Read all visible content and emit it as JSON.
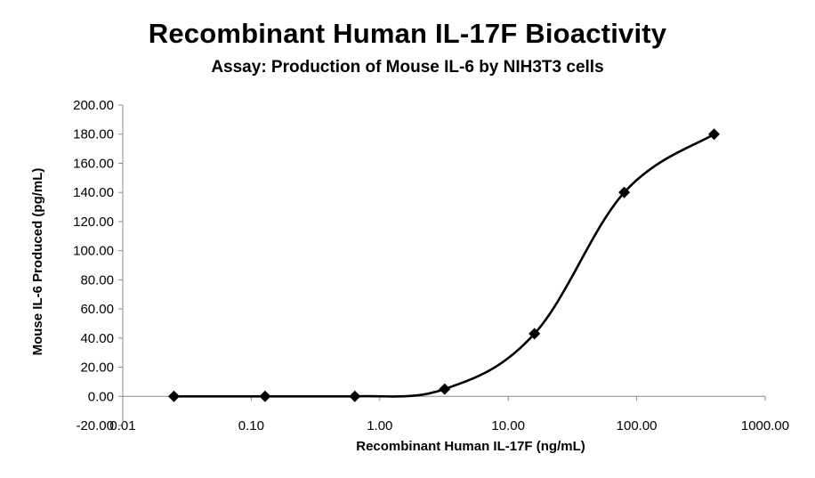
{
  "chart_data": {
    "type": "scatter",
    "title": "Recombinant Human IL-17F Bioactivity",
    "subtitle": "Assay: Production of Mouse IL-6 by NIH3T3 cells",
    "xlabel": "Recombinant Human IL-17F (ng/mL)",
    "ylabel": "Mouse IL-6 Produced (pg/mL)",
    "x_scale": "log",
    "xlim": [
      0.01,
      1000
    ],
    "ylim": [
      -20,
      200
    ],
    "x_ticks": [
      "0.01",
      "0.10",
      "1.00",
      "10.00",
      "100.00",
      "1000.00"
    ],
    "y_ticks": [
      "-20.00",
      "0.00",
      "20.00",
      "40.00",
      "60.00",
      "80.00",
      "100.00",
      "120.00",
      "140.00",
      "160.00",
      "180.00",
      "200.00"
    ],
    "grid": false,
    "series": [
      {
        "marker": "diamond",
        "line": "smooth",
        "color": "#000000",
        "x": [
          0.025,
          0.128,
          0.64,
          3.2,
          16,
          80,
          400
        ],
        "y": [
          0.0,
          0.0,
          0.0,
          5.0,
          43.0,
          140.0,
          180.0
        ]
      }
    ]
  }
}
